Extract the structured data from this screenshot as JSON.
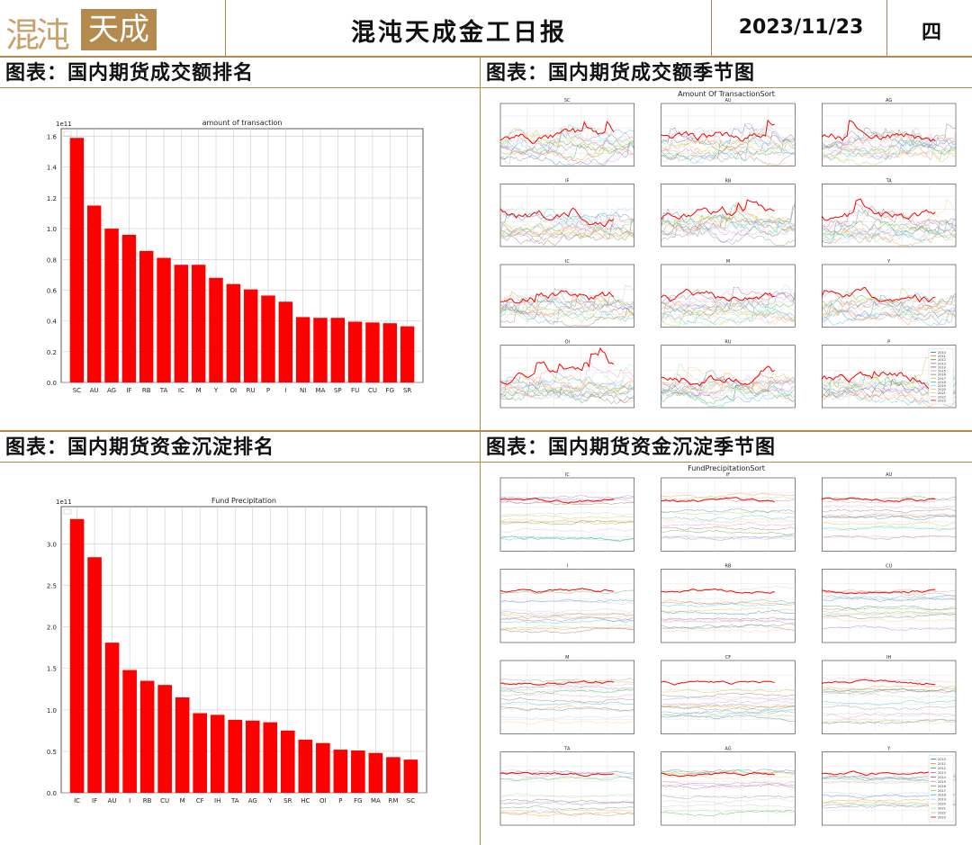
{
  "header": {
    "logo_left": "混沌",
    "logo_box": "天成",
    "title": "混沌天成金工日报",
    "date": "2023/11/23",
    "weekday": "四"
  },
  "panels": {
    "tl_title": "图表：国内期货成交额排名",
    "tr_title": "图表：国内期货成交额季节图",
    "bl_title": "图表：国内期货资金沉淀排名",
    "br_title": "图表：国内期货资金沉淀季节图"
  },
  "colors": {
    "bar": "#ff0000",
    "accent": "#b48a4e"
  },
  "chart_data": [
    {
      "type": "bar",
      "title": "amount of transaction",
      "offset_label": "1e11",
      "categories": [
        "SC",
        "AU",
        "AG",
        "IF",
        "RB",
        "TA",
        "IC",
        "M",
        "Y",
        "OI",
        "RU",
        "P",
        "I",
        "NI",
        "MA",
        "SP",
        "FU",
        "CU",
        "FG",
        "SR"
      ],
      "values": [
        1.59,
        1.15,
        1.0,
        0.96,
        0.855,
        0.81,
        0.765,
        0.765,
        0.68,
        0.64,
        0.605,
        0.565,
        0.525,
        0.425,
        0.42,
        0.42,
        0.395,
        0.39,
        0.385,
        0.365
      ],
      "ylim": [
        0,
        1.65
      ],
      "yticks": [
        "0.0",
        "0.2",
        "0.4",
        "0.6",
        "0.8",
        "1.0",
        "1.2",
        "1.4",
        "1.6"
      ],
      "grid": true
    },
    {
      "type": "line",
      "title": "Amount Of TransactionSort",
      "subplots": [
        "SC",
        "AU",
        "AG",
        "IF",
        "RB",
        "TA",
        "IC",
        "M",
        "Y",
        "OI",
        "RU",
        "P"
      ],
      "legend": [
        "2010",
        "2011",
        "2012",
        "2013",
        "2014",
        "2015",
        "2016",
        "2017",
        "2018",
        "2019",
        "2020",
        "2021",
        "2022",
        "2023"
      ]
    },
    {
      "type": "bar",
      "title": "Fund Precipitation",
      "offset_label": "1e11",
      "categories": [
        "IC",
        "IF",
        "AU",
        "I",
        "RB",
        "CU",
        "M",
        "CF",
        "IH",
        "TA",
        "AG",
        "Y",
        "SR",
        "HC",
        "OI",
        "P",
        "FG",
        "MA",
        "RM",
        "SC"
      ],
      "values": [
        3.3,
        2.84,
        1.81,
        1.48,
        1.35,
        1.3,
        1.15,
        0.96,
        0.94,
        0.88,
        0.87,
        0.85,
        0.75,
        0.64,
        0.6,
        0.52,
        0.51,
        0.48,
        0.43,
        0.4
      ],
      "ylim": [
        0,
        3.45
      ],
      "yticks": [
        "0.0",
        "0.5",
        "1.0",
        "1.5",
        "2.0",
        "2.5",
        "3.0"
      ],
      "grid": true
    },
    {
      "type": "line",
      "title": "FundPrecipitationSort",
      "subplots": [
        "IC",
        "IF",
        "AU",
        "I",
        "RB",
        "CU",
        "M",
        "CF",
        "IH",
        "TA",
        "AG",
        "Y"
      ],
      "legend": [
        "2010",
        "2011",
        "2012",
        "2013",
        "2014",
        "2015",
        "2016",
        "2017",
        "2018",
        "2019",
        "2020",
        "2021",
        "2022",
        "2023"
      ]
    }
  ]
}
